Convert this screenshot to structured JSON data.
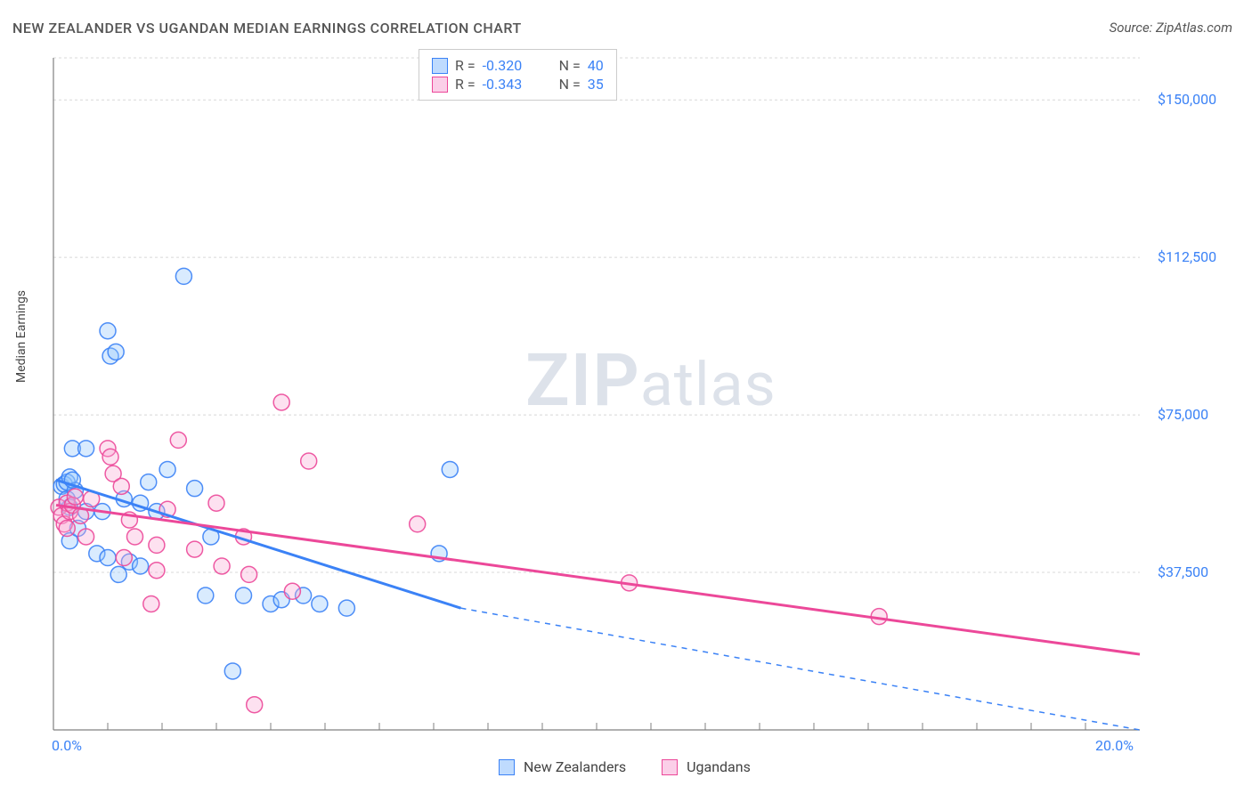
{
  "title": "NEW ZEALANDER VS UGANDAN MEDIAN EARNINGS CORRELATION CHART",
  "source_label": "Source: ZipAtlas.com",
  "ylabel": "Median Earnings",
  "watermark_a": "ZIP",
  "watermark_b": "atlas",
  "chart": {
    "type": "scatter",
    "xlim": [
      0,
      20
    ],
    "ylim": [
      0,
      160000
    ],
    "x_ticks_labeled": {
      "0": "0.0%",
      "20": "20.0%"
    },
    "x_tick_minors": [
      1,
      2,
      3,
      4,
      5,
      6,
      7,
      8,
      9,
      10,
      11,
      12,
      13,
      14,
      15,
      16,
      17,
      18,
      19
    ],
    "y_ticks": [
      37500,
      75000,
      112500,
      150000
    ],
    "y_tick_labels": [
      "$37,500",
      "$75,000",
      "$112,500",
      "$150,000"
    ],
    "grid_color": "#d8d8d8",
    "axis_color": "#808080",
    "background_color": "#ffffff",
    "marker_radius": 9,
    "marker_fill_opacity": 0.35,
    "marker_stroke_opacity": 0.9,
    "series": [
      {
        "name": "New Zealanders",
        "color": "#3b82f6",
        "fill": "#93c5fd",
        "stroke": "#3b82f6",
        "points": [
          [
            0.15,
            58000
          ],
          [
            0.2,
            58500
          ],
          [
            0.25,
            59000
          ],
          [
            0.25,
            55000
          ],
          [
            0.3,
            60200
          ],
          [
            0.3,
            53000
          ],
          [
            0.35,
            67000
          ],
          [
            0.3,
            45000
          ],
          [
            0.4,
            57000
          ],
          [
            0.35,
            59500
          ],
          [
            0.45,
            48000
          ],
          [
            0.6,
            52000
          ],
          [
            0.9,
            52000
          ],
          [
            1.0,
            95000
          ],
          [
            1.05,
            89000
          ],
          [
            1.15,
            90000
          ],
          [
            0.6,
            67000
          ],
          [
            0.8,
            42000
          ],
          [
            1.0,
            41000
          ],
          [
            1.2,
            37000
          ],
          [
            1.3,
            55000
          ],
          [
            1.4,
            40000
          ],
          [
            1.6,
            39000
          ],
          [
            1.6,
            54000
          ],
          [
            1.75,
            59000
          ],
          [
            1.9,
            52000
          ],
          [
            2.4,
            108000
          ],
          [
            2.1,
            62000
          ],
          [
            2.6,
            57500
          ],
          [
            2.8,
            32000
          ],
          [
            2.9,
            46000
          ],
          [
            3.3,
            14000
          ],
          [
            3.5,
            32000
          ],
          [
            4.0,
            30000
          ],
          [
            4.2,
            31000
          ],
          [
            4.6,
            32000
          ],
          [
            4.9,
            30000
          ],
          [
            5.4,
            29000
          ],
          [
            7.1,
            42000
          ],
          [
            7.3,
            62000
          ]
        ],
        "trend": {
          "x1": 0.05,
          "y1": 59500,
          "x2": 7.5,
          "y2": 29000
        },
        "trend_extrapolate": {
          "x1": 7.5,
          "y1": 29000,
          "x2": 20.0,
          "y2": -22000
        },
        "line_width": 3,
        "dash_width": 1.5
      },
      {
        "name": "Ugandans",
        "color": "#ec4899",
        "fill": "#f9a8d4",
        "stroke": "#ec4899",
        "points": [
          [
            0.1,
            53000
          ],
          [
            0.15,
            51000
          ],
          [
            0.2,
            49000
          ],
          [
            0.25,
            48000
          ],
          [
            0.25,
            54000
          ],
          [
            0.3,
            52000
          ],
          [
            0.35,
            53500
          ],
          [
            0.4,
            55500
          ],
          [
            0.5,
            51000
          ],
          [
            0.6,
            46000
          ],
          [
            0.7,
            55000
          ],
          [
            1.0,
            67000
          ],
          [
            1.05,
            65000
          ],
          [
            1.1,
            61000
          ],
          [
            1.3,
            41000
          ],
          [
            1.25,
            58000
          ],
          [
            1.5,
            46000
          ],
          [
            1.8,
            30000
          ],
          [
            1.9,
            44000
          ],
          [
            1.9,
            38000
          ],
          [
            2.1,
            52500
          ],
          [
            2.3,
            69000
          ],
          [
            2.6,
            43000
          ],
          [
            3.0,
            54000
          ],
          [
            3.1,
            39000
          ],
          [
            3.5,
            46000
          ],
          [
            3.6,
            37000
          ],
          [
            3.7,
            6000
          ],
          [
            4.2,
            78000
          ],
          [
            4.4,
            33000
          ],
          [
            4.7,
            64000
          ],
          [
            6.7,
            49000
          ],
          [
            10.6,
            35000
          ],
          [
            15.2,
            27000
          ],
          [
            1.4,
            50000
          ]
        ],
        "trend": {
          "x1": 0.05,
          "y1": 53500,
          "x2": 20.0,
          "y2": 18000
        },
        "line_width": 3
      }
    ]
  },
  "legend_top": {
    "rows": [
      {
        "swatch_fill": "#bfdbfe",
        "swatch_border": "#3b82f6",
        "r_label": "R =",
        "r_val": "-0.320",
        "n_label": "N =",
        "n_val": "40"
      },
      {
        "swatch_fill": "#fbcfe8",
        "swatch_border": "#ec4899",
        "r_label": "R =",
        "r_val": "-0.343",
        "n_label": "N =",
        "n_val": "35"
      }
    ],
    "text_color": "#555",
    "value_color": "#3b82f6"
  },
  "legend_bottom": {
    "items": [
      {
        "swatch_fill": "#bfdbfe",
        "swatch_border": "#3b82f6",
        "label": "New Zealanders"
      },
      {
        "swatch_fill": "#fbcfe8",
        "swatch_border": "#ec4899",
        "label": "Ugandans"
      }
    ]
  }
}
